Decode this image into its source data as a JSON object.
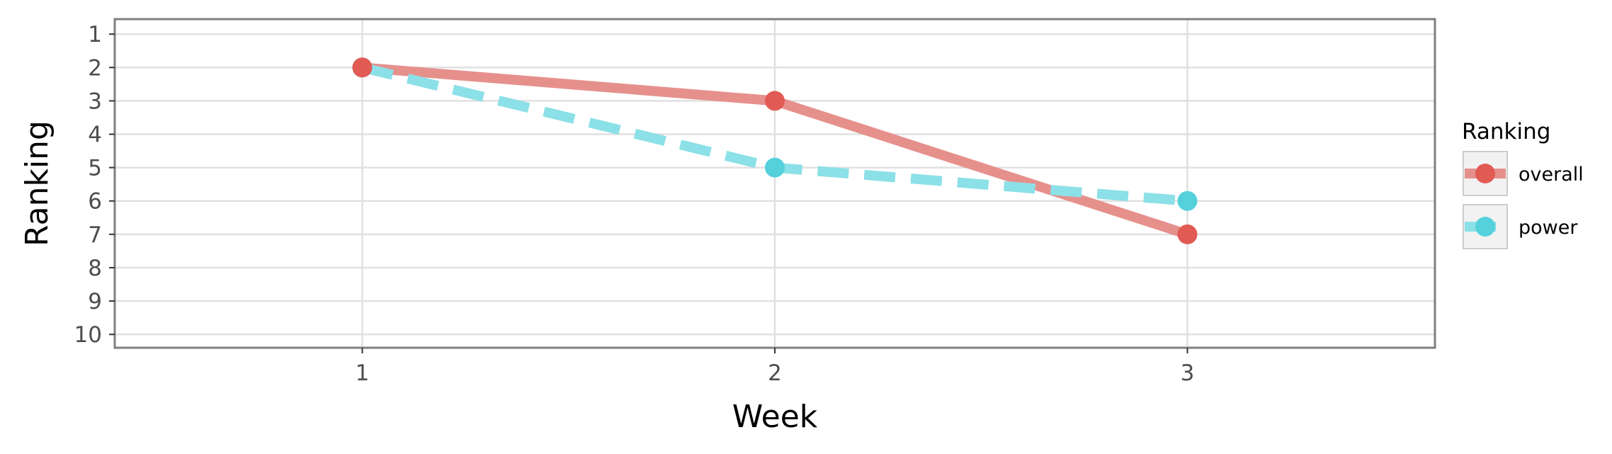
{
  "chart_data": {
    "type": "line",
    "title": "",
    "xlabel": "Week",
    "ylabel": "Ranking",
    "x": [
      1,
      2,
      3
    ],
    "x_tick_labels": [
      "1",
      "2",
      "3"
    ],
    "xlim": [
      0.4,
      3.6
    ],
    "y_tick_labels": [
      "1",
      "2",
      "3",
      "4",
      "5",
      "6",
      "7",
      "8",
      "9",
      "10"
    ],
    "ylim": [
      10.4,
      0.55
    ],
    "y_reversed": true,
    "grid": true,
    "legend": {
      "title": "Ranking",
      "position": "right"
    },
    "series": [
      {
        "name": "overall",
        "values": [
          2,
          3,
          7
        ],
        "color": "#e15a54",
        "line_color": "#e6908c",
        "dash": "solid"
      },
      {
        "name": "power",
        "values": [
          2,
          5,
          6
        ],
        "color": "#55d1dc",
        "line_color": "#8ce0e7",
        "dash": "dashed"
      }
    ]
  }
}
